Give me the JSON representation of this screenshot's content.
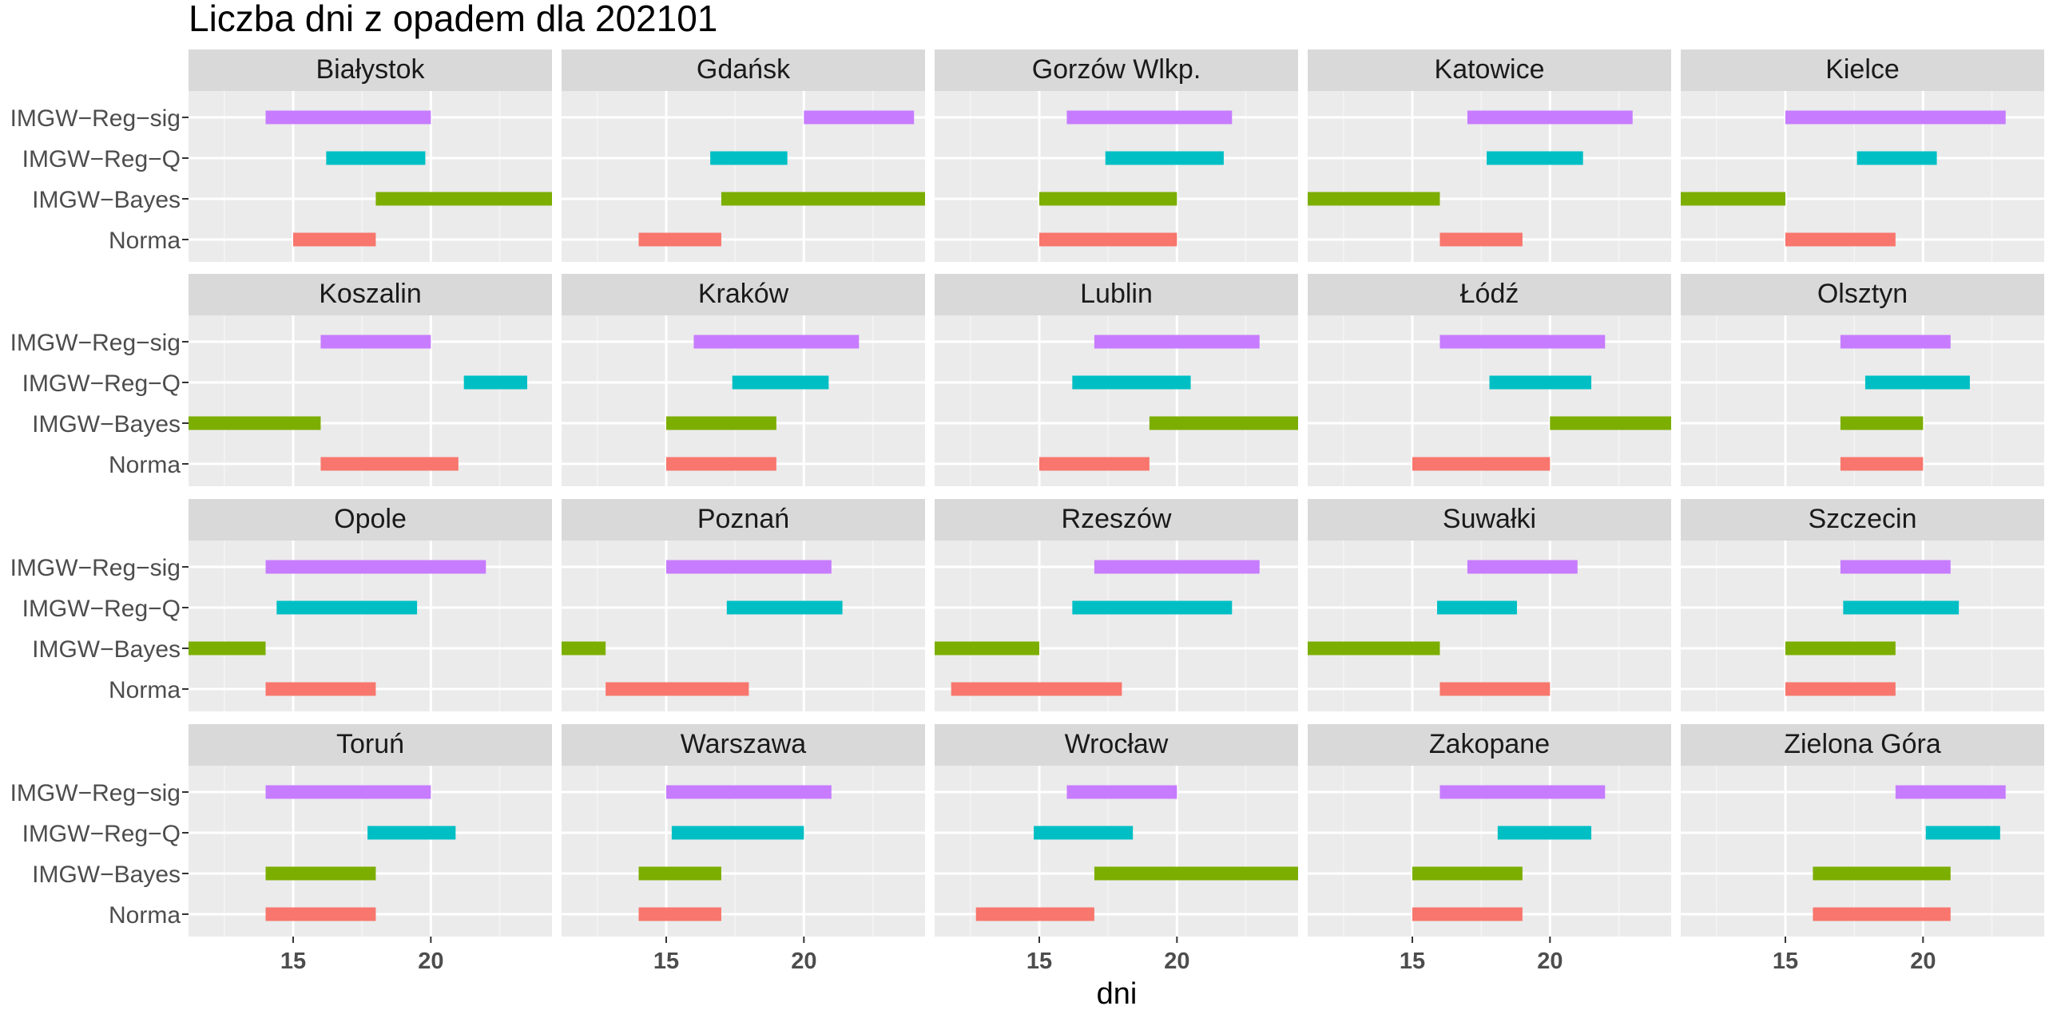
{
  "chart_data": {
    "type": "bar",
    "subtype": "faceted-range",
    "title": "Liczba dni z opadem dla 202101",
    "xlabel": "dni",
    "ylabel": "",
    "xlim": [
      11.2,
      24.4
    ],
    "x_ticks": [
      15,
      20
    ],
    "grid": true,
    "panel_background": "#EBEBEB",
    "strip_background": "#D9D9D9",
    "y_categories": [
      "IMGW−Reg−sig",
      "IMGW−Reg−Q",
      "IMGW−Bayes",
      "Norma"
    ],
    "colors": {
      "IMGW−Reg−sig": "#C77CFF",
      "IMGW−Reg−Q": "#00BFC4",
      "IMGW−Bayes": "#7CAE00",
      "Norma": "#F8766D"
    },
    "facets": [
      {
        "name": "Białystok",
        "ranges": {
          "IMGW−Reg−sig": [
            14,
            20
          ],
          "IMGW−Reg−Q": [
            16.2,
            19.8
          ],
          "IMGW−Bayes": [
            18,
            24.4
          ],
          "Norma": [
            15,
            18
          ]
        }
      },
      {
        "name": "Gdańsk",
        "ranges": {
          "IMGW−Reg−sig": [
            20,
            24
          ],
          "IMGW−Reg−Q": [
            16.6,
            19.4
          ],
          "IMGW−Bayes": [
            17,
            24.4
          ],
          "Norma": [
            14,
            17
          ]
        }
      },
      {
        "name": "Gorzów Wlkp.",
        "ranges": {
          "IMGW−Reg−sig": [
            16,
            22
          ],
          "IMGW−Reg−Q": [
            17.4,
            21.7
          ],
          "IMGW−Bayes": [
            15,
            20
          ],
          "Norma": [
            15,
            20
          ]
        }
      },
      {
        "name": "Katowice",
        "ranges": {
          "IMGW−Reg−sig": [
            17,
            23
          ],
          "IMGW−Reg−Q": [
            17.7,
            21.2
          ],
          "IMGW−Bayes": [
            11.2,
            16
          ],
          "Norma": [
            16,
            19
          ]
        }
      },
      {
        "name": "Kielce",
        "ranges": {
          "IMGW−Reg−sig": [
            15,
            23
          ],
          "IMGW−Reg−Q": [
            17.6,
            20.5
          ],
          "IMGW−Bayes": [
            11.2,
            15
          ],
          "Norma": [
            15,
            19
          ]
        }
      },
      {
        "name": "Koszalin",
        "ranges": {
          "IMGW−Reg−sig": [
            16,
            20
          ],
          "IMGW−Reg−Q": [
            21.2,
            23.5
          ],
          "IMGW−Bayes": [
            11.2,
            16
          ],
          "Norma": [
            16,
            21
          ]
        }
      },
      {
        "name": "Kraków",
        "ranges": {
          "IMGW−Reg−sig": [
            16,
            22
          ],
          "IMGW−Reg−Q": [
            17.4,
            20.9
          ],
          "IMGW−Bayes": [
            15,
            19
          ],
          "Norma": [
            15,
            19
          ]
        }
      },
      {
        "name": "Lublin",
        "ranges": {
          "IMGW−Reg−sig": [
            17,
            23
          ],
          "IMGW−Reg−Q": [
            16.2,
            20.5
          ],
          "IMGW−Bayes": [
            19,
            24.4
          ],
          "Norma": [
            15,
            19
          ]
        }
      },
      {
        "name": "Łódź",
        "ranges": {
          "IMGW−Reg−sig": [
            16,
            22
          ],
          "IMGW−Reg−Q": [
            17.8,
            21.5
          ],
          "IMGW−Bayes": [
            20,
            24.4
          ],
          "Norma": [
            15,
            20
          ]
        }
      },
      {
        "name": "Olsztyn",
        "ranges": {
          "IMGW−Reg−sig": [
            17,
            21
          ],
          "IMGW−Reg−Q": [
            17.9,
            21.7
          ],
          "IMGW−Bayes": [
            17,
            20
          ],
          "Norma": [
            17,
            20
          ]
        }
      },
      {
        "name": "Opole",
        "ranges": {
          "IMGW−Reg−sig": [
            14,
            22
          ],
          "IMGW−Reg−Q": [
            14.4,
            19.5
          ],
          "IMGW−Bayes": [
            11.2,
            14
          ],
          "Norma": [
            14,
            18
          ]
        }
      },
      {
        "name": "Poznań",
        "ranges": {
          "IMGW−Reg−sig": [
            15,
            21
          ],
          "IMGW−Reg−Q": [
            17.2,
            21.4
          ],
          "IMGW−Bayes": [
            11.2,
            12.8
          ],
          "Norma": [
            12.8,
            18
          ]
        }
      },
      {
        "name": "Rzeszów",
        "ranges": {
          "IMGW−Reg−sig": [
            17,
            23
          ],
          "IMGW−Reg−Q": [
            16.2,
            22
          ],
          "IMGW−Bayes": [
            11.2,
            15
          ],
          "Norma": [
            11.8,
            18
          ]
        }
      },
      {
        "name": "Suwałki",
        "ranges": {
          "IMGW−Reg−sig": [
            17,
            21
          ],
          "IMGW−Reg−Q": [
            15.9,
            18.8
          ],
          "IMGW−Bayes": [
            11.2,
            16
          ],
          "Norma": [
            16,
            20
          ]
        }
      },
      {
        "name": "Szczecin",
        "ranges": {
          "IMGW−Reg−sig": [
            17,
            21
          ],
          "IMGW−Reg−Q": [
            17.1,
            21.3
          ],
          "IMGW−Bayes": [
            15,
            19
          ],
          "Norma": [
            15,
            19
          ]
        }
      },
      {
        "name": "Toruń",
        "ranges": {
          "IMGW−Reg−sig": [
            14,
            20
          ],
          "IMGW−Reg−Q": [
            17.7,
            20.9
          ],
          "IMGW−Bayes": [
            14,
            18
          ],
          "Norma": [
            14,
            18
          ]
        }
      },
      {
        "name": "Warszawa",
        "ranges": {
          "IMGW−Reg−sig": [
            15,
            21
          ],
          "IMGW−Reg−Q": [
            15.2,
            20
          ],
          "IMGW−Bayes": [
            14,
            17
          ],
          "Norma": [
            14,
            17
          ]
        }
      },
      {
        "name": "Wrocław",
        "ranges": {
          "IMGW−Reg−sig": [
            16,
            20
          ],
          "IMGW−Reg−Q": [
            14.8,
            18.4
          ],
          "IMGW−Bayes": [
            17,
            24.4
          ],
          "Norma": [
            12.7,
            17
          ]
        }
      },
      {
        "name": "Zakopane",
        "ranges": {
          "IMGW−Reg−sig": [
            16,
            22
          ],
          "IMGW−Reg−Q": [
            18.1,
            21.5
          ],
          "IMGW−Bayes": [
            15,
            19
          ],
          "Norma": [
            15,
            19
          ]
        }
      },
      {
        "name": "Zielona Góra",
        "ranges": {
          "IMGW−Reg−sig": [
            19,
            23
          ],
          "IMGW−Reg−Q": [
            20.1,
            22.8
          ],
          "IMGW−Bayes": [
            16,
            21
          ],
          "Norma": [
            16,
            21
          ]
        }
      }
    ]
  }
}
